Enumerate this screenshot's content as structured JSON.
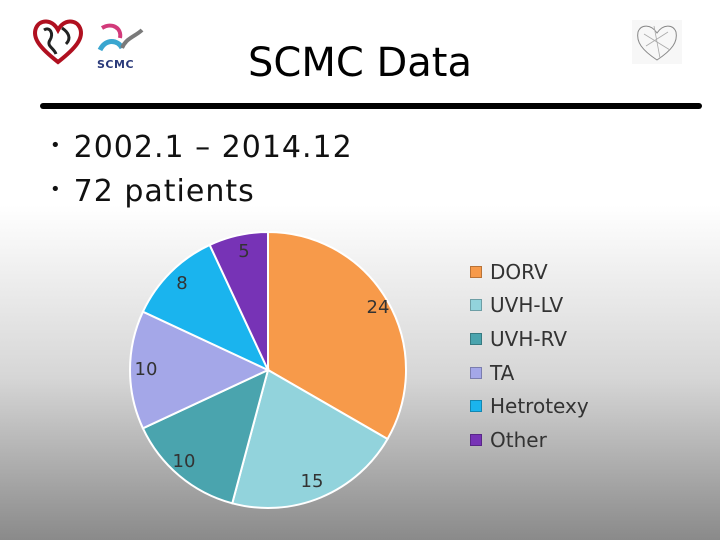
{
  "slide": {
    "title": "SCMC Data",
    "bullets": [
      "2002.1 – 2014.12",
      "72 patients"
    ],
    "logo_text": "SCMC"
  },
  "colors": [
    "#F79A4A",
    "#92D3DC",
    "#4AA4AE",
    "#A4A7E8",
    "#1AB4EE",
    "#7733B6"
  ],
  "chart_data": {
    "type": "pie",
    "categories": [
      "DORV",
      "UVH-LV",
      "UVH-RV",
      "TA",
      "Hetrotexy",
      "Other"
    ],
    "values": [
      24,
      15,
      10,
      10,
      8,
      5
    ],
    "data_labels": [
      "24",
      "15",
      "10",
      "10",
      "8",
      "5"
    ],
    "legend_position": "right"
  }
}
